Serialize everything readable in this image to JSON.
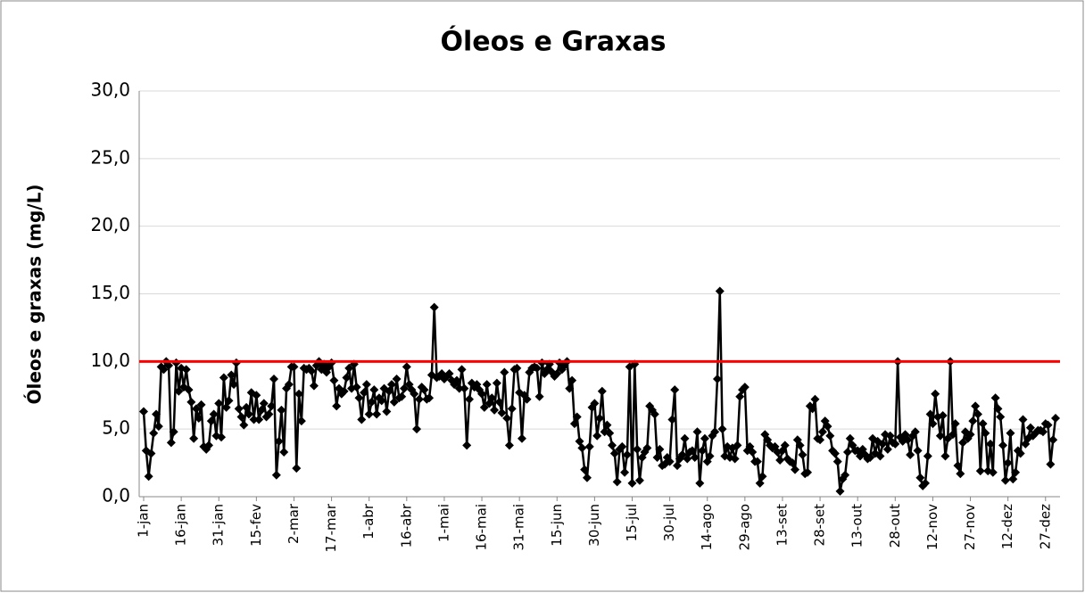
{
  "chart_data": {
    "type": "line",
    "title": "Óleos e Graxas",
    "y_label": "Óleos e graxas (mg/L)",
    "categories": [
      "1-jan",
      null,
      null,
      null,
      null,
      null,
      null,
      null,
      null,
      null,
      null,
      null,
      null,
      null,
      null,
      "16-jan",
      null,
      null,
      null,
      null,
      null,
      null,
      null,
      null,
      null,
      null,
      null,
      null,
      null,
      null,
      "31-jan",
      null,
      null,
      null,
      null,
      null,
      null,
      null,
      null,
      null,
      null,
      null,
      null,
      null,
      null,
      "15-fev",
      null,
      null,
      null,
      null,
      null,
      null,
      null,
      null,
      null,
      null,
      null,
      null,
      null,
      null,
      "2-mar",
      null,
      null,
      null,
      null,
      null,
      null,
      null,
      null,
      null,
      null,
      null,
      null,
      null,
      null,
      "17-mar",
      null,
      null,
      null,
      null,
      null,
      null,
      null,
      null,
      null,
      null,
      null,
      null,
      null,
      null,
      "1-abr",
      null,
      null,
      null,
      null,
      null,
      null,
      null,
      null,
      null,
      null,
      null,
      null,
      null,
      null,
      "16-abr",
      null,
      null,
      null,
      null,
      null,
      null,
      null,
      null,
      null,
      null,
      null,
      null,
      null,
      null,
      "1-mai",
      null,
      null,
      null,
      null,
      null,
      null,
      null,
      null,
      null,
      null,
      null,
      null,
      null,
      null,
      "16-mai",
      null,
      null,
      null,
      null,
      null,
      null,
      null,
      null,
      null,
      null,
      null,
      null,
      null,
      null,
      "31-mai",
      null,
      null,
      null,
      null,
      null,
      null,
      null,
      null,
      null,
      null,
      null,
      null,
      null,
      null,
      "15-jun",
      null,
      null,
      null,
      null,
      null,
      null,
      null,
      null,
      null,
      null,
      null,
      null,
      null,
      null,
      "30-jun",
      null,
      null,
      null,
      null,
      null,
      null,
      null,
      null,
      null,
      null,
      null,
      null,
      null,
      null,
      "15-jul",
      null,
      null,
      null,
      null,
      null,
      null,
      null,
      null,
      null,
      null,
      null,
      null,
      null,
      null,
      "30-jul",
      null,
      null,
      null,
      null,
      null,
      null,
      null,
      null,
      null,
      null,
      null,
      null,
      null,
      null,
      "14-ago",
      null,
      null,
      null,
      null,
      null,
      null,
      null,
      null,
      null,
      null,
      null,
      null,
      null,
      null,
      "29-ago",
      null,
      null,
      null,
      null,
      null,
      null,
      null,
      null,
      null,
      null,
      null,
      null,
      null,
      null,
      "13-set",
      null,
      null,
      null,
      null,
      null,
      null,
      null,
      null,
      null,
      null,
      null,
      null,
      null,
      null,
      "28-set",
      null,
      null,
      null,
      null,
      null,
      null,
      null,
      null,
      null,
      null,
      null,
      null,
      null,
      null,
      "13-out",
      null,
      null,
      null,
      null,
      null,
      null,
      null,
      null,
      null,
      null,
      null,
      null,
      null,
      null,
      "28-out",
      null,
      null,
      null,
      null,
      null,
      null,
      null,
      null,
      null,
      null,
      null,
      null,
      null,
      null,
      "12-nov",
      null,
      null,
      null,
      null,
      null,
      null,
      null,
      null,
      null,
      null,
      null,
      null,
      null,
      null,
      "27-nov",
      null,
      null,
      null,
      null,
      null,
      null,
      null,
      null,
      null,
      null,
      null,
      null,
      null,
      null,
      "12-dez",
      null,
      null,
      null,
      null,
      null,
      null,
      null,
      null,
      null,
      null,
      null,
      null,
      null,
      null,
      "27-dez",
      null,
      null,
      null,
      null
    ],
    "series": [
      {
        "color": "#000000",
        "values": [
          6.3,
          3.4,
          1.5,
          3.2,
          4.7,
          6.1,
          5.2,
          9.6,
          9.4,
          10.0,
          9.7,
          4.0,
          4.8,
          9.9,
          7.8,
          9.5,
          8.1,
          9.4,
          7.9,
          7.0,
          4.3,
          6.5,
          5.8,
          6.8,
          3.7,
          3.5,
          3.8,
          5.6,
          6.1,
          4.5,
          6.9,
          4.4,
          8.8,
          6.6,
          7.1,
          9.0,
          8.3,
          9.9,
          6.5,
          5.9,
          5.3,
          6.6,
          6.1,
          7.7,
          5.7,
          7.5,
          5.7,
          6.4,
          6.9,
          5.9,
          6.1,
          6.7,
          8.7,
          1.6,
          4.1,
          6.4,
          3.3,
          8.0,
          8.3,
          9.6,
          9.6,
          2.1,
          7.6,
          5.6,
          9.5,
          9.4,
          9.5,
          9.3,
          8.2,
          9.7,
          10.0,
          9.4,
          9.8,
          9.2,
          9.6,
          9.9,
          8.6,
          6.7,
          8.0,
          7.6,
          7.8,
          8.8,
          9.5,
          8.0,
          9.8,
          8.1,
          7.3,
          5.7,
          7.7,
          8.3,
          6.1,
          7.0,
          7.9,
          6.1,
          7.3,
          7.1,
          8.0,
          6.3,
          7.8,
          8.3,
          7.0,
          8.7,
          7.3,
          7.4,
          8.0,
          9.6,
          8.3,
          7.9,
          7.6,
          5.0,
          7.2,
          8.1,
          7.9,
          7.2,
          7.3,
          9.0,
          14.0,
          8.8,
          8.9,
          9.1,
          8.7,
          8.9,
          9.1,
          8.6,
          8.3,
          8.6,
          8.0,
          9.4,
          8.0,
          3.8,
          7.2,
          8.4,
          8.1,
          8.3,
          7.9,
          7.6,
          6.6,
          8.3,
          6.9,
          7.3,
          6.4,
          8.4,
          7.0,
          6.2,
          9.2,
          5.8,
          3.8,
          6.5,
          9.4,
          9.5,
          7.7,
          4.3,
          7.5,
          7.2,
          9.2,
          9.5,
          9.6,
          9.5,
          7.4,
          9.9,
          9.1,
          9.4,
          9.8,
          9.2,
          8.9,
          9.1,
          9.9,
          9.4,
          9.7,
          10.0,
          8.0,
          8.6,
          5.4,
          5.9,
          4.1,
          3.6,
          2.0,
          1.4,
          3.7,
          6.6,
          6.9,
          4.5,
          5.8,
          7.8,
          4.8,
          5.3,
          4.7,
          3.8,
          3.2,
          1.1,
          3.5,
          3.7,
          1.8,
          3.1,
          9.6,
          1.0,
          9.8,
          3.5,
          1.2,
          2.9,
          3.3,
          3.6,
          6.7,
          6.4,
          6.1,
          2.9,
          3.5,
          2.3,
          2.4,
          2.9,
          2.6,
          5.7,
          7.9,
          2.3,
          2.8,
          3.1,
          4.3,
          2.8,
          3.3,
          3.4,
          2.9,
          4.8,
          1.0,
          3.4,
          4.3,
          2.6,
          3.0,
          4.5,
          4.8,
          8.7,
          15.2,
          5.0,
          3.0,
          3.7,
          2.9,
          3.6,
          2.8,
          3.8,
          7.4,
          7.9,
          8.1,
          3.4,
          3.7,
          3.3,
          2.6,
          2.6,
          1.0,
          1.5,
          4.6,
          4.2,
          3.8,
          3.6,
          3.7,
          3.3,
          2.7,
          3.4,
          3.8,
          2.8,
          2.6,
          2.5,
          2.0,
          4.2,
          3.8,
          3.1,
          1.7,
          1.8,
          6.7,
          6.5,
          7.2,
          4.3,
          4.2,
          4.8,
          5.6,
          5.2,
          4.5,
          3.4,
          3.2,
          2.6,
          0.4,
          1.3,
          1.6,
          3.3,
          4.3,
          3.8,
          3.4,
          3.4,
          3.0,
          3.5,
          3.1,
          2.8,
          2.9,
          4.3,
          3.2,
          4.1,
          3.0,
          3.9,
          4.6,
          3.5,
          4.5,
          4.0,
          3.9,
          10.0,
          4.4,
          4.1,
          4.6,
          4.2,
          3.1,
          4.5,
          4.8,
          3.4,
          1.4,
          0.8,
          1.0,
          3.0,
          6.1,
          5.4,
          7.6,
          5.9,
          4.5,
          6.0,
          3.0,
          4.3,
          10.0,
          4.6,
          5.4,
          2.3,
          1.7,
          4.0,
          4.8,
          4.3,
          4.6,
          5.6,
          6.7,
          6.1,
          1.9,
          5.4,
          4.7,
          1.9,
          3.9,
          1.8,
          7.3,
          6.5,
          5.9,
          3.8,
          1.2,
          2.5,
          4.7,
          1.3,
          1.8,
          3.4,
          3.2,
          5.7,
          3.9,
          4.3,
          5.1,
          4.5,
          4.7,
          4.9,
          4.9,
          4.8,
          5.4,
          5.3,
          2.4,
          4.2,
          5.8
        ]
      }
    ],
    "limit": {
      "value": 10,
      "color": "#ff0000"
    },
    "ylim": [
      0,
      30
    ],
    "yticks": [
      {
        "value": 0,
        "label": "0,0"
      },
      {
        "value": 5,
        "label": "5,0"
      },
      {
        "value": 10,
        "label": "10,0"
      },
      {
        "value": 15,
        "label": "15,0"
      },
      {
        "value": 20,
        "label": "20,0"
      },
      {
        "value": 25,
        "label": "25,0"
      },
      {
        "value": 30,
        "label": "30,0"
      }
    ],
    "grid": true
  }
}
